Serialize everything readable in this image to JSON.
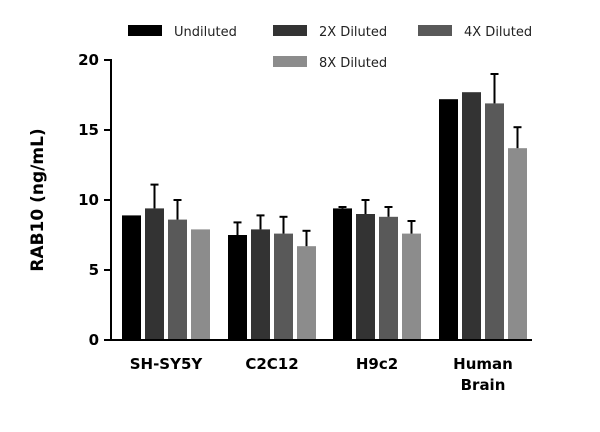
{
  "chart_data": {
    "type": "bar",
    "title": "",
    "xlabel": "",
    "ylabel": "RAB10 (ng/mL)",
    "ylim": [
      0,
      20
    ],
    "yticks": [
      0,
      5,
      10,
      15,
      20
    ],
    "grid": false,
    "legend_position": "top",
    "categories": [
      [
        "SH-SY5Y"
      ],
      [
        "C2C12"
      ],
      [
        "H9c2"
      ],
      [
        "Human",
        "Brain"
      ]
    ],
    "series": [
      {
        "name": "Undiluted",
        "color": "#000000",
        "values": [
          8.9,
          7.5,
          9.4,
          17.2
        ],
        "errors": [
          0.0,
          0.9,
          0.1,
          0.0
        ]
      },
      {
        "name": "2X Diluted",
        "color": "#333333",
        "values": [
          9.4,
          7.9,
          9.0,
          17.7
        ],
        "errors": [
          1.7,
          1.0,
          1.0,
          0.0
        ]
      },
      {
        "name": "4X Diluted",
        "color": "#595959",
        "values": [
          8.6,
          7.6,
          8.8,
          16.9
        ],
        "errors": [
          1.4,
          1.2,
          0.7,
          2.1
        ]
      },
      {
        "name": "8X Diluted",
        "color": "#8c8c8c",
        "values": [
          7.9,
          6.7,
          7.6,
          13.7
        ],
        "errors": [
          0.0,
          1.1,
          0.9,
          1.5
        ]
      }
    ]
  }
}
